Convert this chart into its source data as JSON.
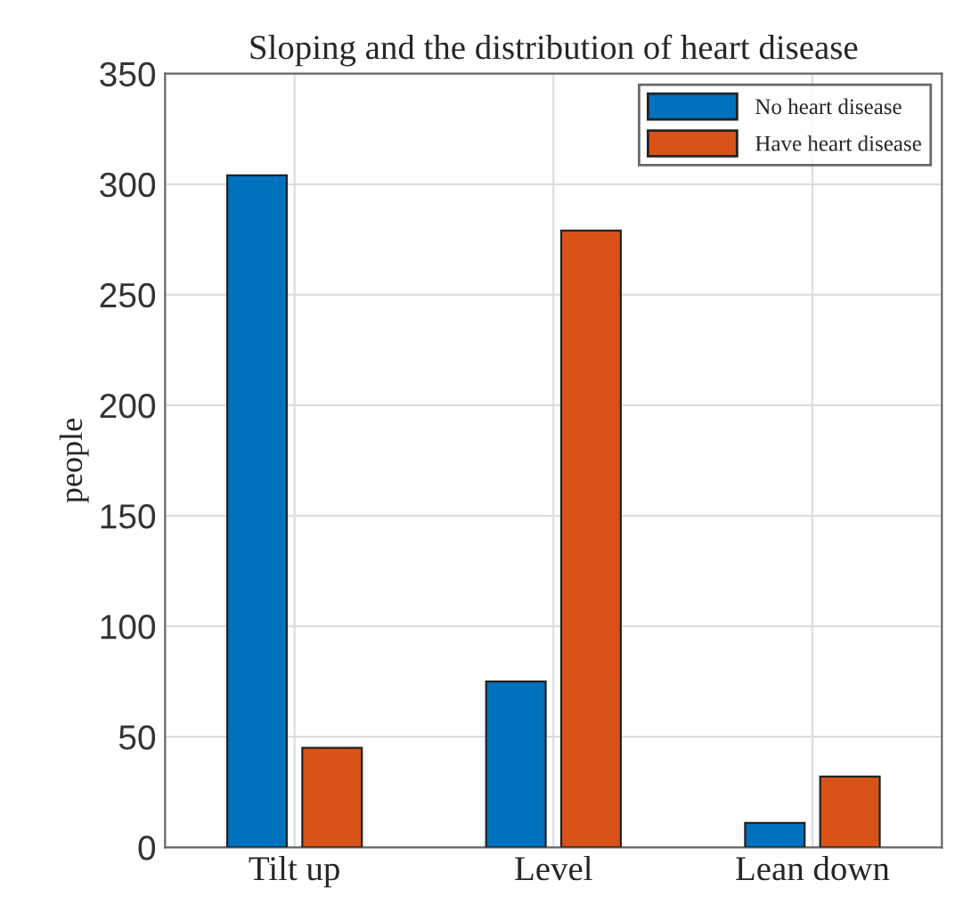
{
  "chart_data": {
    "type": "bar",
    "title": "Sloping and the distribution of heart disease",
    "ylabel": "people",
    "categories": [
      "Tilt up",
      "Level",
      "Lean down"
    ],
    "series": [
      {
        "name": "No heart disease",
        "color": "#0072bd",
        "values": [
          304,
          75,
          11
        ]
      },
      {
        "name": "Have heart disease",
        "color": "#d95319",
        "values": [
          45,
          279,
          32
        ]
      }
    ],
    "ylim": [
      0,
      350
    ],
    "yticks": [
      0,
      50,
      100,
      150,
      200,
      250,
      300,
      350
    ],
    "grid": true,
    "legend": "top right"
  }
}
